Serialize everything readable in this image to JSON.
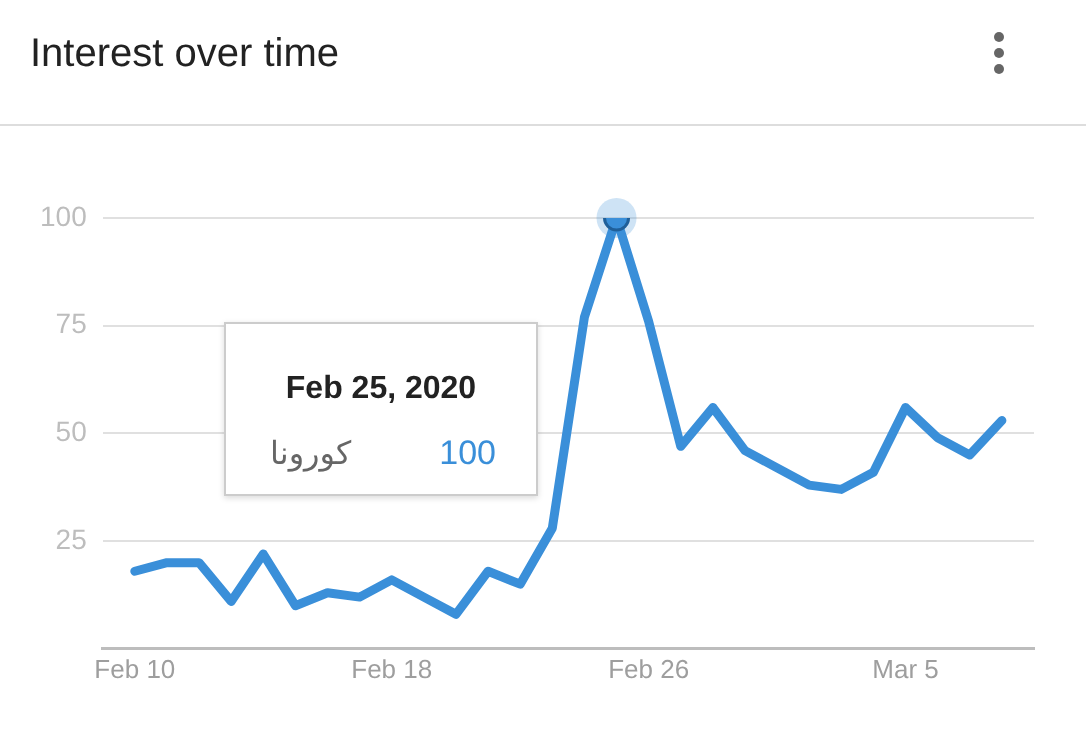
{
  "chart_data": {
    "type": "line",
    "title": "Interest over time",
    "x": [
      "2020-02-10",
      "2020-02-11",
      "2020-02-12",
      "2020-02-13",
      "2020-02-14",
      "2020-02-15",
      "2020-02-16",
      "2020-02-17",
      "2020-02-18",
      "2020-02-19",
      "2020-02-20",
      "2020-02-21",
      "2020-02-22",
      "2020-02-23",
      "2020-02-24",
      "2020-02-25",
      "2020-02-26",
      "2020-02-27",
      "2020-02-28",
      "2020-02-29",
      "2020-03-01",
      "2020-03-02",
      "2020-03-03",
      "2020-03-04",
      "2020-03-05",
      "2020-03-06",
      "2020-03-07",
      "2020-03-08"
    ],
    "series": [
      {
        "name": "كورونا",
        "color": "#3a8fd9",
        "values": [
          18,
          20,
          20,
          11,
          22,
          10,
          13,
          12,
          16,
          12,
          8,
          18,
          15,
          28,
          77,
          100,
          76,
          47,
          56,
          46,
          42,
          38,
          37,
          41,
          56,
          49,
          45,
          53
        ]
      }
    ],
    "annotations": [
      "Feb 25, 2020",
      "100"
    ],
    "xlim": [
      "2020-02-09",
      "2020-03-09"
    ],
    "xticks": [
      {
        "value": "2020-02-10",
        "label": "Feb 10"
      },
      {
        "value": "2020-02-18",
        "label": "Feb 18"
      },
      {
        "value": "2020-02-26",
        "label": "Feb 26"
      },
      {
        "value": "2020-03-05",
        "label": "Mar 5"
      }
    ],
    "ylim": [
      0,
      100
    ],
    "yticks": [
      25,
      50,
      75,
      100
    ],
    "grid": "y",
    "legend": false,
    "marker": "none",
    "line_style": "solid"
  }
}
